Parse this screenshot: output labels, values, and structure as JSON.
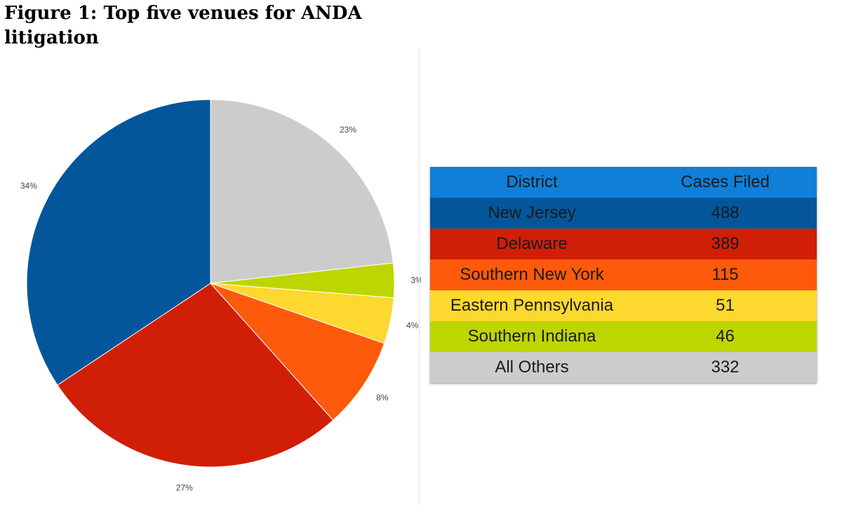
{
  "title": "Figure 1: Top five venues for ANDA litigation",
  "chart_data": [
    {
      "type": "pie",
      "title": "",
      "slices": [
        {
          "label": "All Others",
          "value": 23,
          "display": "23%",
          "color": "#cccccc"
        },
        {
          "label": "Southern Indiana",
          "value": 3,
          "display": "3%",
          "color": "#bdd600"
        },
        {
          "label": "Eastern Pennsylvania",
          "value": 4,
          "display": "4%",
          "color": "#fdd82e"
        },
        {
          "label": "Southern New York",
          "value": 8,
          "display": "8%",
          "color": "#fe5a0c"
        },
        {
          "label": "Delaware",
          "value": 27,
          "display": "27%",
          "color": "#d11e07"
        },
        {
          "label": "New Jersey",
          "value": 34,
          "display": "34%",
          "color": "#03569a"
        }
      ],
      "start_angle_deg": 0,
      "direction": "clockwise"
    },
    {
      "type": "table",
      "columns": [
        "District",
        "Cases Filed"
      ],
      "header_color": "#0f7fd8",
      "rows": [
        {
          "district": "New Jersey",
          "cases": "488",
          "color": "#03569a"
        },
        {
          "district": "Delaware",
          "cases": "389",
          "color": "#d11e07"
        },
        {
          "district": "Southern New York",
          "cases": "115",
          "color": "#fe5a0c"
        },
        {
          "district": "Eastern Pennsylvania",
          "cases": "51",
          "color": "#fdd82e"
        },
        {
          "district": "Southern Indiana",
          "cases": "46",
          "color": "#bdd600"
        },
        {
          "district": "All Others",
          "cases": "332",
          "color": "#cccccc"
        }
      ]
    }
  ]
}
